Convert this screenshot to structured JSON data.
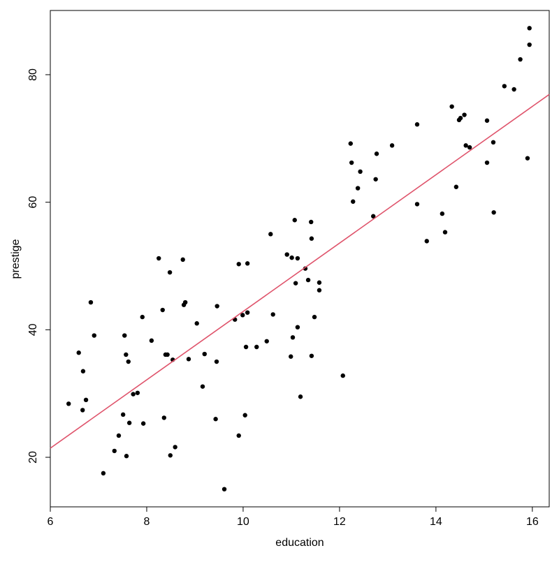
{
  "chart_data": {
    "type": "scatter",
    "xlabel": "education",
    "ylabel": "prestige",
    "xlim": [
      6,
      16.35
    ],
    "ylim": [
      12.23,
      90.07
    ],
    "xticks": [
      6,
      8,
      10,
      12,
      14,
      16
    ],
    "yticks": [
      20,
      40,
      60,
      80
    ],
    "color": "#000000",
    "x": [
      6.38,
      6.59,
      6.68,
      6.67,
      6.74,
      6.84,
      6.91,
      7.1,
      7.33,
      7.42,
      7.51,
      7.54,
      7.57,
      7.58,
      7.62,
      7.64,
      7.72,
      7.81,
      7.91,
      7.93,
      8.1,
      8.25,
      8.33,
      8.36,
      8.39,
      8.43,
      8.48,
      8.49,
      8.54,
      8.59,
      8.75,
      8.77,
      8.8,
      8.87,
      9.04,
      9.16,
      9.2,
      9.43,
      9.45,
      9.46,
      9.61,
      9.83,
      9.91,
      9.91,
      9.99,
      10.04,
      10.06,
      10.09,
      10.09,
      10.28,
      10.49,
      10.57,
      10.62,
      10.91,
      10.99,
      11.01,
      11.03,
      11.07,
      11.09,
      11.13,
      11.13,
      11.19,
      11.29,
      11.35,
      11.41,
      11.42,
      11.42,
      11.48,
      11.58,
      11.58,
      12.07,
      12.23,
      12.25,
      12.28,
      12.38,
      12.43,
      12.7,
      12.75,
      12.77,
      13.09,
      13.61,
      13.61,
      13.81,
      14.13,
      14.19,
      14.33,
      14.42,
      14.48,
      14.51,
      14.59,
      14.62,
      14.7,
      15.06,
      15.06,
      15.19,
      15.2,
      15.42,
      15.62,
      15.75,
      15.9,
      15.94,
      15.94
    ],
    "values": [
      28.4,
      36.4,
      33.5,
      27.4,
      29.0,
      44.3,
      39.1,
      17.5,
      21.0,
      23.4,
      26.7,
      39.1,
      36.1,
      20.2,
      35.0,
      25.4,
      29.9,
      30.1,
      42.0,
      25.3,
      38.3,
      51.2,
      43.1,
      26.2,
      36.1,
      36.1,
      49.0,
      20.3,
      35.3,
      21.6,
      51.0,
      43.9,
      44.3,
      35.4,
      41.0,
      31.1,
      36.2,
      26.0,
      35.0,
      43.7,
      15.0,
      41.6,
      50.3,
      23.4,
      42.3,
      26.6,
      37.3,
      42.7,
      50.4,
      37.3,
      38.2,
      55.0,
      42.4,
      51.8,
      35.8,
      51.3,
      38.8,
      57.2,
      47.3,
      51.2,
      40.4,
      29.5,
      49.6,
      47.8,
      56.9,
      35.9,
      54.3,
      42.0,
      47.4,
      46.2,
      32.8,
      69.2,
      66.2,
      60.1,
      62.2,
      64.8,
      57.8,
      63.6,
      67.6,
      68.9,
      72.2,
      59.7,
      53.9,
      58.2,
      55.3,
      75.0,
      62.4,
      72.9,
      73.2,
      73.7,
      68.9,
      68.6,
      72.8,
      66.2,
      69.4,
      58.4,
      78.2,
      77.7,
      82.4,
      66.9,
      84.7,
      87.3
    ],
    "fit": {
      "color": "#df536b",
      "x": [
        6,
        16.35
      ],
      "y": [
        21.43,
        76.9
      ]
    }
  }
}
